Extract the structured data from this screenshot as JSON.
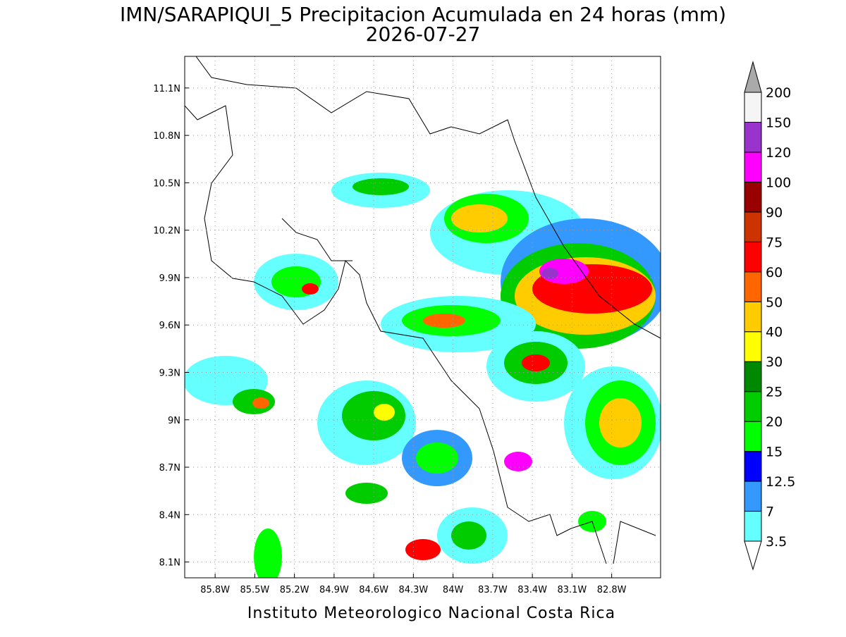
{
  "map": {
    "title": "IMN/SARAPIQUI_5 Precipitacion Acumulada en 24 horas (mm)",
    "subtitle": "2026-07-27",
    "footer": "Instituto Meteorologico Nacional Costa Rica",
    "xlim": [
      -86.03,
      -82.43
    ],
    "ylim": [
      8.0,
      11.3
    ],
    "lon_ticks": [
      {
        "value": -85.8,
        "label": "85.8W"
      },
      {
        "value": -85.5,
        "label": "85.5W"
      },
      {
        "value": -85.2,
        "label": "85.2W"
      },
      {
        "value": -84.9,
        "label": "84.9W"
      },
      {
        "value": -84.6,
        "label": "84.6W"
      },
      {
        "value": -84.3,
        "label": "84.3W"
      },
      {
        "value": -84.0,
        "label": "84W"
      },
      {
        "value": -83.7,
        "label": "83.7W"
      },
      {
        "value": -83.4,
        "label": "83.4W"
      },
      {
        "value": -83.1,
        "label": "83.1W"
      },
      {
        "value": -82.8,
        "label": "82.8W"
      }
    ],
    "lat_ticks": [
      {
        "value": 8.1,
        "label": "8.1N"
      },
      {
        "value": 8.4,
        "label": "8.4N"
      },
      {
        "value": 8.7,
        "label": "8.7N"
      },
      {
        "value": 9.0,
        "label": "9N"
      },
      {
        "value": 9.3,
        "label": "9.3N"
      },
      {
        "value": 9.6,
        "label": "9.6N"
      },
      {
        "value": 9.9,
        "label": "9.9N"
      },
      {
        "value": 10.2,
        "label": "10.2N"
      },
      {
        "value": 10.5,
        "label": "10.5N"
      },
      {
        "value": 10.8,
        "label": "10.8N"
      },
      {
        "value": 11.1,
        "label": "11.1N"
      }
    ],
    "colorbar": {
      "levels": [
        3.5,
        7,
        12.5,
        15,
        20,
        25,
        30,
        40,
        50,
        60,
        75,
        90,
        100,
        120,
        150,
        200
      ],
      "colors": [
        "#66ffff",
        "#3399ff",
        "#0000ff",
        "#00ff00",
        "#00cc00",
        "#008800",
        "#ffff00",
        "#ffcc00",
        "#ff6600",
        "#ff0000",
        "#cc3300",
        "#990000",
        "#ff00ff",
        "#9933cc",
        "#f5f5f5"
      ],
      "under_color": "#ffffff",
      "over_color": "#aaaaaa"
    }
  }
}
